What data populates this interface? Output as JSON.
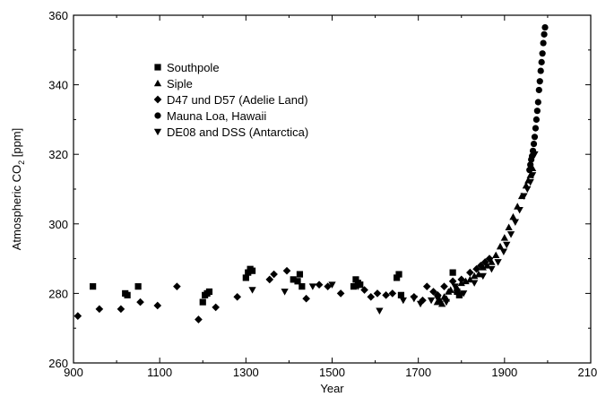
{
  "chart_data": {
    "type": "scatter",
    "xlabel": "Year",
    "ylabel_main": "Atmospheric CO",
    "ylabel_sub": "2",
    "ylabel_unit": " [ppm]",
    "xlim": [
      900,
      2100
    ],
    "ylim": [
      260,
      360
    ],
    "x_ticks": [
      900,
      1100,
      1300,
      1500,
      1700,
      1900,
      2100
    ],
    "y_ticks": [
      260,
      280,
      300,
      320,
      340,
      360
    ],
    "x_tick_labels": [
      "900",
      "1100",
      "1300",
      "1500",
      "1700",
      "1900",
      "2100"
    ],
    "y_tick_labels": [
      "260",
      "280",
      "300",
      "320",
      "340",
      "360"
    ],
    "grid": false,
    "legend_position": "top-left",
    "series": [
      {
        "name": "Southpole",
        "marker": "square",
        "points": [
          [
            945,
            282
          ],
          [
            1020,
            280
          ],
          [
            1025,
            279.5
          ],
          [
            1050,
            282
          ],
          [
            1200,
            277.5
          ],
          [
            1205,
            279.5
          ],
          [
            1210,
            280
          ],
          [
            1215,
            280.5
          ],
          [
            1300,
            284.5
          ],
          [
            1305,
            286
          ],
          [
            1310,
            287
          ],
          [
            1315,
            286.5
          ],
          [
            1410,
            284
          ],
          [
            1420,
            283.5
          ],
          [
            1425,
            285.5
          ],
          [
            1430,
            282
          ],
          [
            1550,
            282
          ],
          [
            1555,
            284
          ],
          [
            1560,
            283
          ],
          [
            1565,
            282.5
          ],
          [
            1650,
            284.5
          ],
          [
            1655,
            285.5
          ],
          [
            1660,
            279.5
          ],
          [
            1780,
            286
          ],
          [
            1790,
            280.5
          ],
          [
            1795,
            279.5
          ]
        ]
      },
      {
        "name": "Siple",
        "marker": "triangle-up",
        "points": [
          [
            1744,
            277.5
          ],
          [
            1750,
            278
          ],
          [
            1755,
            277
          ],
          [
            1760,
            279
          ],
          [
            1765,
            278.5
          ],
          [
            1770,
            280.5
          ],
          [
            1775,
            281
          ],
          [
            1790,
            281.5
          ],
          [
            1800,
            283
          ],
          [
            1810,
            283.5
          ],
          [
            1820,
            284
          ],
          [
            1830,
            285
          ],
          [
            1840,
            285.5
          ],
          [
            1850,
            287.5
          ],
          [
            1860,
            288
          ],
          [
            1870,
            289
          ],
          [
            1880,
            291
          ],
          [
            1890,
            293.5
          ],
          [
            1900,
            296
          ],
          [
            1910,
            299
          ],
          [
            1920,
            302
          ],
          [
            1930,
            305
          ],
          [
            1940,
            308
          ],
          [
            1950,
            311
          ],
          [
            1955,
            312.5
          ],
          [
            1960,
            314
          ],
          [
            1965,
            316
          ]
        ]
      },
      {
        "name": "D47 und D57 (Adelie Land)",
        "marker": "diamond",
        "points": [
          [
            910,
            273.5
          ],
          [
            960,
            275.5
          ],
          [
            1010,
            275.5
          ],
          [
            1055,
            277.5
          ],
          [
            1095,
            276.5
          ],
          [
            1140,
            282
          ],
          [
            1190,
            272.5
          ],
          [
            1230,
            276
          ],
          [
            1280,
            279
          ],
          [
            1355,
            284
          ],
          [
            1365,
            285.5
          ],
          [
            1395,
            286.5
          ],
          [
            1440,
            278.5
          ],
          [
            1470,
            282.5
          ],
          [
            1490,
            282
          ],
          [
            1520,
            280
          ],
          [
            1575,
            281
          ],
          [
            1590,
            279
          ],
          [
            1605,
            280
          ],
          [
            1625,
            279.5
          ],
          [
            1640,
            280
          ],
          [
            1690,
            279
          ],
          [
            1710,
            278
          ],
          [
            1720,
            282
          ],
          [
            1735,
            280.5
          ],
          [
            1745,
            279.5
          ],
          [
            1760,
            282
          ],
          [
            1780,
            283.5
          ],
          [
            1800,
            284
          ],
          [
            1820,
            286
          ],
          [
            1835,
            287
          ],
          [
            1845,
            288
          ],
          [
            1855,
            289
          ],
          [
            1865,
            290
          ]
        ]
      },
      {
        "name": "Mauna Loa, Hawaii",
        "marker": "circle",
        "points": [
          [
            1958,
            315.5
          ],
          [
            1960,
            317
          ],
          [
            1962,
            318.5
          ],
          [
            1964,
            319.5
          ],
          [
            1966,
            321
          ],
          [
            1968,
            323
          ],
          [
            1970,
            325
          ],
          [
            1972,
            327.5
          ],
          [
            1974,
            330
          ],
          [
            1976,
            332.5
          ],
          [
            1978,
            335
          ],
          [
            1980,
            338.5
          ],
          [
            1982,
            341
          ],
          [
            1984,
            344
          ],
          [
            1986,
            346.5
          ],
          [
            1988,
            349
          ],
          [
            1990,
            352
          ],
          [
            1992,
            354.5
          ],
          [
            1994,
            356.5
          ]
        ]
      },
      {
        "name": "DE08 and DSS (Antarctica)",
        "marker": "triangle-down",
        "points": [
          [
            1315,
            281
          ],
          [
            1390,
            280.5
          ],
          [
            1455,
            282
          ],
          [
            1500,
            282.5
          ],
          [
            1560,
            282
          ],
          [
            1610,
            275
          ],
          [
            1665,
            278
          ],
          [
            1690,
            278.5
          ],
          [
            1705,
            277
          ],
          [
            1730,
            278
          ],
          [
            1745,
            278.5
          ],
          [
            1765,
            277.5
          ],
          [
            1785,
            282
          ],
          [
            1805,
            280
          ],
          [
            1830,
            283
          ],
          [
            1850,
            285
          ],
          [
            1870,
            287
          ],
          [
            1885,
            289
          ],
          [
            1898,
            292
          ],
          [
            1905,
            294
          ],
          [
            1915,
            297
          ],
          [
            1925,
            300.5
          ],
          [
            1935,
            304
          ],
          [
            1945,
            308
          ],
          [
            1953,
            310
          ],
          [
            1960,
            312
          ],
          [
            1965,
            314
          ],
          [
            1970,
            320
          ]
        ]
      }
    ]
  }
}
